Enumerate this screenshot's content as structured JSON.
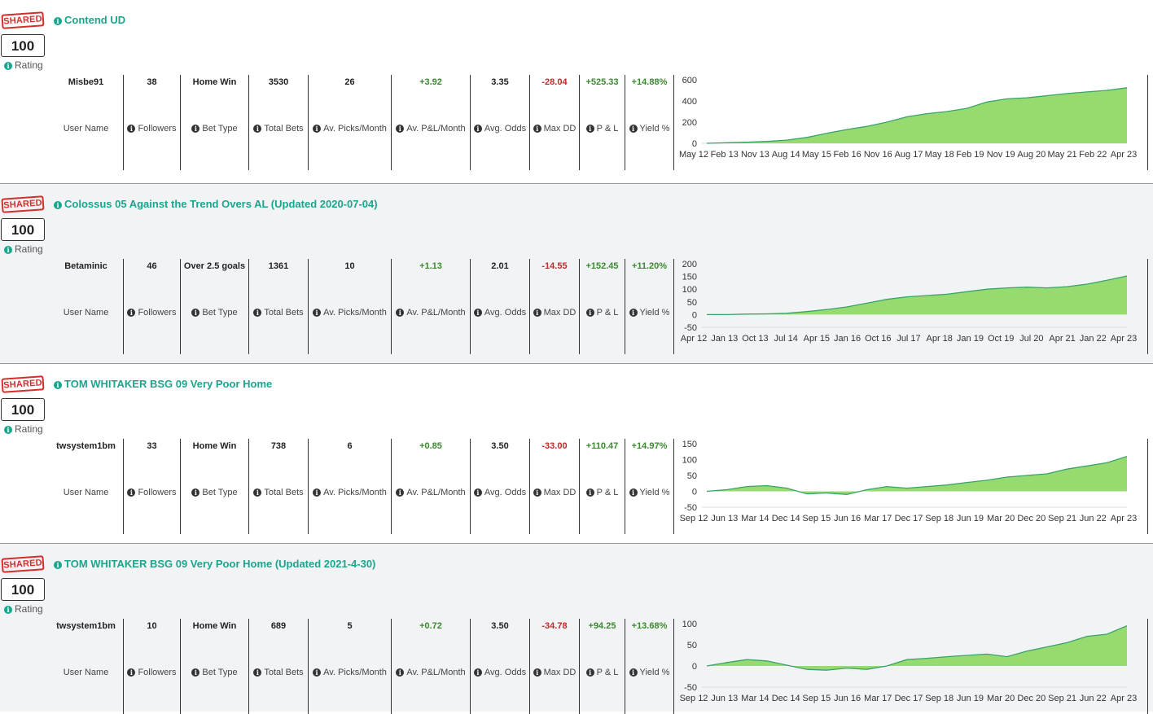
{
  "labels": {
    "shared_badge": "SHARED",
    "rating_label": "Rating",
    "user_name": "User Name",
    "followers": "Followers",
    "bet_type": "Bet Type",
    "total_bets": "Total Bets",
    "av_picks_month": "Av. Picks/Month",
    "av_pl_month": "Av. P&L/Month",
    "avg_odds": "Avg. Odds",
    "max_dd": "Max DD",
    "pl": "P & L",
    "yield": "Yield %"
  },
  "colors": {
    "accent": "#1aa68d",
    "positive": "#3a8a2e",
    "negative": "#c62828",
    "area_fill": "#97db70",
    "area_line": "#3aa36a"
  },
  "systems": [
    {
      "title": "Contend UD",
      "rating": "100",
      "user_name": "Misbe91",
      "followers": "38",
      "bet_type": "Home Win",
      "total_bets": "3530",
      "av_picks_month": "26",
      "av_pl_month": "+3.92",
      "avg_odds": "3.35",
      "max_dd": "-28.04",
      "pl": "+525.33",
      "yield": "+14.88%",
      "chart_data": {
        "type": "area",
        "y_ticks": [
          "600",
          "400",
          "200",
          "0"
        ],
        "ylim": [
          0,
          600
        ],
        "x_ticks": [
          "May 12",
          "Feb 13",
          "Nov 13",
          "Aug 14",
          "May 15",
          "Feb 16",
          "Nov 16",
          "Aug 17",
          "May 18",
          "Feb 19",
          "Nov 19",
          "Aug 20",
          "May 21",
          "Feb 22",
          "Apr 23"
        ],
        "values": [
          0,
          5,
          10,
          18,
          30,
          55,
          95,
          130,
          160,
          200,
          250,
          280,
          300,
          330,
          390,
          420,
          430,
          450,
          470,
          485,
          500,
          525
        ]
      }
    },
    {
      "title": "Colossus 05 Against the Trend Overs AL (Updated 2020-07-04)",
      "rating": "100",
      "user_name": "Betaminic",
      "followers": "46",
      "bet_type": "Over 2.5 goals",
      "total_bets": "1361",
      "av_picks_month": "10",
      "av_pl_month": "+1.13",
      "avg_odds": "2.01",
      "max_dd": "-14.55",
      "pl": "+152.45",
      "yield": "+11.20%",
      "chart_data": {
        "type": "area",
        "y_ticks": [
          "200",
          "150",
          "100",
          "50",
          "0",
          "-50"
        ],
        "ylim": [
          -50,
          200
        ],
        "x_ticks": [
          "Apr 12",
          "Jan 13",
          "Oct 13",
          "Jul 14",
          "Apr 15",
          "Jan 16",
          "Oct 16",
          "Jul 17",
          "Apr 18",
          "Jan 19",
          "Oct 19",
          "Jul 20",
          "Apr 21",
          "Jan 22",
          "Apr 23"
        ],
        "values": [
          0,
          0,
          2,
          3,
          5,
          12,
          20,
          30,
          45,
          60,
          70,
          75,
          80,
          90,
          100,
          105,
          108,
          105,
          110,
          120,
          135,
          152
        ]
      }
    },
    {
      "title": "TOM WHITAKER BSG 09 Very Poor Home",
      "rating": "100",
      "user_name": "twsystem1bm",
      "followers": "33",
      "bet_type": "Home Win",
      "total_bets": "738",
      "av_picks_month": "6",
      "av_pl_month": "+0.85",
      "avg_odds": "3.50",
      "max_dd": "-33.00",
      "pl": "+110.47",
      "yield": "+14.97%",
      "chart_data": {
        "type": "area",
        "y_ticks": [
          "150",
          "100",
          "50",
          "0",
          "-50"
        ],
        "ylim": [
          -50,
          150
        ],
        "x_ticks": [
          "Sep 12",
          "Jun 13",
          "Mar 14",
          "Dec 14",
          "Sep 15",
          "Jun 16",
          "Mar 17",
          "Dec 17",
          "Sep 18",
          "Jun 19",
          "Mar 20",
          "Dec 20",
          "Sep 21",
          "Jun 22",
          "Apr 23"
        ],
        "values": [
          0,
          5,
          15,
          18,
          10,
          -8,
          -5,
          -10,
          5,
          15,
          10,
          15,
          20,
          28,
          35,
          45,
          50,
          55,
          70,
          80,
          90,
          110
        ]
      }
    },
    {
      "title": "TOM WHITAKER BSG 09 Very Poor Home (Updated 2021-4-30)",
      "rating": "100",
      "user_name": "twsystem1bm",
      "followers": "10",
      "bet_type": "Home Win",
      "total_bets": "689",
      "av_picks_month": "5",
      "av_pl_month": "+0.72",
      "avg_odds": "3.50",
      "max_dd": "-34.78",
      "pl": "+94.25",
      "yield": "+13.68%",
      "chart_data": {
        "type": "area",
        "y_ticks": [
          "100",
          "50",
          "0",
          "-50"
        ],
        "ylim": [
          -50,
          100
        ],
        "x_ticks": [
          "Sep 12",
          "Jun 13",
          "Mar 14",
          "Dec 14",
          "Sep 15",
          "Jun 16",
          "Mar 17",
          "Dec 17",
          "Sep 18",
          "Jun 19",
          "Mar 20",
          "Dec 20",
          "Sep 21",
          "Jun 22",
          "Apr 23"
        ],
        "values": [
          0,
          8,
          15,
          12,
          2,
          -8,
          -10,
          -5,
          -8,
          0,
          15,
          18,
          22,
          25,
          28,
          22,
          35,
          45,
          55,
          70,
          75,
          95
        ]
      }
    }
  ]
}
